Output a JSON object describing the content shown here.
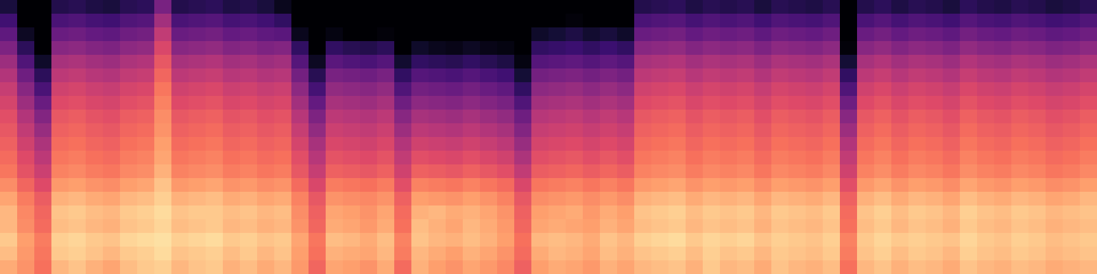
{
  "chart_data": {
    "type": "heatmap",
    "color": "magma",
    "zlim": [
      -80,
      0
    ],
    "tick_labels": false,
    "cells": [
      [
        -14,
        -18,
        -24,
        -12,
        -10,
        -13,
        -15,
        -11,
        -9,
        -8,
        -12,
        -10,
        -9,
        -13,
        -11,
        -14,
        -12,
        -17,
        -26,
        -15,
        -16,
        -18,
        -14,
        -25,
        -13,
        -16,
        -18,
        -15,
        -17,
        -20,
        -27,
        -16,
        -14,
        -15,
        -17,
        -13,
        -15,
        -12,
        -11,
        -10,
        -13,
        -9,
        -12,
        -11,
        -14,
        -10,
        -12,
        -13,
        -11,
        -24,
        -12,
        -10,
        -13,
        -11,
        -12,
        -14,
        -10,
        -12,
        -13,
        -11,
        -12,
        -14,
        -13,
        -12
      ],
      [
        -11,
        -17,
        -23,
        -9,
        -8,
        -10,
        -12,
        -9,
        -8,
        -6,
        -10,
        -9,
        -8,
        -11,
        -9,
        -12,
        -10,
        -16,
        -24,
        -13,
        -14,
        -15,
        -12,
        -22,
        -12,
        -14,
        -16,
        -13,
        -15,
        -18,
        -25,
        -14,
        -12,
        -13,
        -15,
        -11,
        -13,
        -10,
        -9,
        -8,
        -11,
        -8,
        -10,
        -9,
        -12,
        -9,
        -10,
        -11,
        -9,
        -22,
        -10,
        -8,
        -11,
        -9,
        -10,
        -12,
        -8,
        -10,
        -11,
        -9,
        -10,
        -12,
        -11,
        -10
      ],
      [
        -9,
        -16,
        -22,
        -8,
        -7,
        -9,
        -10,
        -7,
        -6,
        -5,
        -8,
        -7,
        -6,
        -9,
        -8,
        -10,
        -9,
        -15,
        -23,
        -11,
        -12,
        -14,
        -11,
        -21,
        -10,
        -12,
        -13,
        -11,
        -13,
        -16,
        -24,
        -12,
        -11,
        -12,
        -14,
        -10,
        -12,
        -8,
        -7,
        -6,
        -9,
        -7,
        -8,
        -7,
        -10,
        -8,
        -9,
        -10,
        -8,
        -21,
        -9,
        -7,
        -9,
        -8,
        -9,
        -10,
        -7,
        -9,
        -10,
        -8,
        -9,
        -11,
        -10,
        -9
      ],
      [
        -12,
        -19,
        -25,
        -11,
        -10,
        -12,
        -13,
        -10,
        -9,
        -7,
        -11,
        -10,
        -9,
        -12,
        -11,
        -13,
        -12,
        -18,
        -26,
        -14,
        -15,
        -17,
        -14,
        -24,
        -11,
        -13,
        -15,
        -12,
        -14,
        -17,
        -26,
        -15,
        -14,
        -15,
        -16,
        -13,
        -15,
        -11,
        -10,
        -9,
        -12,
        -10,
        -11,
        -10,
        -13,
        -10,
        -11,
        -12,
        -10,
        -24,
        -11,
        -9,
        -12,
        -10,
        -11,
        -13,
        -9,
        -11,
        -12,
        -10,
        -11,
        -13,
        -12,
        -11
      ],
      [
        -12,
        -20,
        -26,
        -10,
        -9,
        -11,
        -12,
        -9,
        -8,
        -6,
        -10,
        -9,
        -9,
        -11,
        -10,
        -12,
        -11,
        -19,
        -27,
        -15,
        -16,
        -18,
        -15,
        -25,
        -13,
        -12,
        -14,
        -13,
        -15,
        -18,
        -27,
        -16,
        -15,
        -14,
        -17,
        -14,
        -16,
        -10,
        -9,
        -8,
        -11,
        -9,
        -10,
        -9,
        -12,
        -9,
        -10,
        -11,
        -9,
        -25,
        -10,
        -8,
        -11,
        -9,
        -10,
        -12,
        -8,
        -10,
        -11,
        -9,
        -10,
        -12,
        -11,
        -10
      ],
      [
        -15,
        -22,
        -28,
        -13,
        -12,
        -14,
        -15,
        -12,
        -11,
        -8,
        -13,
        -12,
        -11,
        -14,
        -13,
        -15,
        -14,
        -21,
        -29,
        -18,
        -19,
        -20,
        -18,
        -27,
        -16,
        -17,
        -18,
        -16,
        -18,
        -21,
        -29,
        -19,
        -18,
        -17,
        -19,
        -17,
        -19,
        -13,
        -12,
        -11,
        -14,
        -12,
        -13,
        -12,
        -15,
        -12,
        -13,
        -14,
        -12,
        -27,
        -13,
        -11,
        -14,
        -12,
        -13,
        -15,
        -11,
        -13,
        -14,
        -12,
        -13,
        -15,
        -14,
        -12
      ],
      [
        -19,
        -26,
        -32,
        -17,
        -16,
        -18,
        -19,
        -16,
        -15,
        -10,
        -17,
        -16,
        -15,
        -18,
        -17,
        -19,
        -18,
        -25,
        -33,
        -22,
        -23,
        -24,
        -22,
        -31,
        -21,
        -22,
        -23,
        -21,
        -23,
        -25,
        -33,
        -23,
        -22,
        -21,
        -23,
        -21,
        -23,
        -17,
        -16,
        -15,
        -18,
        -16,
        -17,
        -16,
        -19,
        -16,
        -17,
        -18,
        -16,
        -31,
        -17,
        -15,
        -18,
        -16,
        -17,
        -19,
        -15,
        -17,
        -18,
        -16,
        -17,
        -19,
        -18,
        -16
      ],
      [
        -23,
        -30,
        -36,
        -21,
        -20,
        -22,
        -23,
        -20,
        -19,
        -13,
        -21,
        -20,
        -19,
        -22,
        -21,
        -23,
        -22,
        -29,
        -37,
        -27,
        -28,
        -29,
        -27,
        -35,
        -27,
        -28,
        -29,
        -27,
        -29,
        -31,
        -38,
        -28,
        -27,
        -26,
        -28,
        -26,
        -28,
        -21,
        -20,
        -19,
        -22,
        -20,
        -21,
        -20,
        -23,
        -20,
        -21,
        -22,
        -20,
        -35,
        -21,
        -19,
        -22,
        -20,
        -21,
        -23,
        -19,
        -21,
        -22,
        -20,
        -21,
        -23,
        -22,
        -20
      ],
      [
        -25,
        -32,
        -39,
        -23,
        -22,
        -24,
        -25,
        -22,
        -21,
        -15,
        -23,
        -22,
        -21,
        -24,
        -23,
        -25,
        -24,
        -31,
        -40,
        -30,
        -31,
        -32,
        -30,
        -38,
        -31,
        -32,
        -33,
        -31,
        -33,
        -35,
        -42,
        -31,
        -30,
        -29,
        -31,
        -29,
        -31,
        -23,
        -22,
        -21,
        -24,
        -22,
        -23,
        -22,
        -25,
        -22,
        -23,
        -24,
        -22,
        -38,
        -23,
        -21,
        -24,
        -22,
        -23,
        -25,
        -21,
        -23,
        -24,
        -22,
        -23,
        -25,
        -24,
        -22
      ],
      [
        -27,
        -35,
        -42,
        -25,
        -24,
        -26,
        -27,
        -24,
        -23,
        -16,
        -25,
        -24,
        -23,
        -26,
        -25,
        -27,
        -26,
        -34,
        -43,
        -33,
        -34,
        -35,
        -33,
        -41,
        -35,
        -36,
        -37,
        -35,
        -37,
        -39,
        -46,
        -34,
        -33,
        -32,
        -34,
        -32,
        -34,
        -25,
        -24,
        -23,
        -26,
        -24,
        -25,
        -24,
        -27,
        -24,
        -25,
        -26,
        -24,
        -41,
        -25,
        -23,
        -26,
        -24,
        -25,
        -27,
        -23,
        -25,
        -26,
        -24,
        -25,
        -27,
        -26,
        -24
      ],
      [
        -29,
        -38,
        -46,
        -27,
        -26,
        -28,
        -29,
        -26,
        -25,
        -18,
        -27,
        -26,
        -25,
        -28,
        -27,
        -29,
        -28,
        -37,
        -47,
        -36,
        -37,
        -38,
        -36,
        -45,
        -39,
        -40,
        -41,
        -39,
        -41,
        -43,
        -50,
        -37,
        -36,
        -35,
        -37,
        -35,
        -37,
        -27,
        -26,
        -25,
        -28,
        -26,
        -27,
        -26,
        -29,
        -26,
        -27,
        -28,
        -26,
        -45,
        -27,
        -25,
        -28,
        -26,
        -27,
        -29,
        -25,
        -27,
        -28,
        -26,
        -27,
        -29,
        -28,
        -26
      ],
      [
        -31,
        -41,
        -50,
        -29,
        -28,
        -30,
        -31,
        -28,
        -27,
        -19,
        -29,
        -28,
        -27,
        -30,
        -29,
        -31,
        -30,
        -40,
        -51,
        -39,
        -40,
        -41,
        -39,
        -49,
        -43,
        -44,
        -45,
        -43,
        -45,
        -47,
        -54,
        -40,
        -39,
        -38,
        -40,
        -38,
        -40,
        -29,
        -28,
        -27,
        -30,
        -28,
        -29,
        -28,
        -31,
        -28,
        -29,
        -30,
        -28,
        -49,
        -29,
        -27,
        -30,
        -28,
        -29,
        -31,
        -27,
        -29,
        -30,
        -28,
        -29,
        -31,
        -30,
        -28
      ],
      [
        -34,
        -45,
        -55,
        -32,
        -31,
        -33,
        -34,
        -31,
        -30,
        -21,
        -32,
        -31,
        -30,
        -33,
        -32,
        -34,
        -33,
        -44,
        -56,
        -43,
        -44,
        -45,
        -43,
        -54,
        -48,
        -49,
        -50,
        -48,
        -50,
        -52,
        -60,
        -44,
        -43,
        -42,
        -44,
        -42,
        -44,
        -32,
        -31,
        -30,
        -33,
        -31,
        -32,
        -31,
        -34,
        -31,
        -32,
        -33,
        -31,
        -54,
        -32,
        -30,
        -33,
        -31,
        -32,
        -34,
        -30,
        -32,
        -33,
        -31,
        -32,
        -34,
        -33,
        -31
      ],
      [
        -37,
        -49,
        -61,
        -35,
        -34,
        -36,
        -37,
        -34,
        -33,
        -23,
        -35,
        -34,
        -33,
        -36,
        -35,
        -37,
        -36,
        -48,
        -62,
        -47,
        -48,
        -49,
        -47,
        -60,
        -53,
        -54,
        -55,
        -53,
        -55,
        -57,
        -66,
        -48,
        -47,
        -46,
        -48,
        -46,
        -48,
        -35,
        -34,
        -33,
        -36,
        -34,
        -35,
        -34,
        -37,
        -34,
        -35,
        -36,
        -34,
        -60,
        -35,
        -33,
        -36,
        -34,
        -35,
        -37,
        -33,
        -35,
        -36,
        -34,
        -35,
        -37,
        -36,
        -34
      ],
      [
        -41,
        -54,
        -67,
        -39,
        -38,
        -40,
        -41,
        -38,
        -37,
        -26,
        -39,
        -38,
        -37,
        -40,
        -39,
        -41,
        -40,
        -53,
        -68,
        -52,
        -53,
        -54,
        -52,
        -66,
        -59,
        -60,
        -61,
        -59,
        -61,
        -63,
        -72,
        -53,
        -52,
        -51,
        -53,
        -51,
        -53,
        -39,
        -38,
        -37,
        -40,
        -38,
        -39,
        -38,
        -41,
        -38,
        -39,
        -40,
        -38,
        -66,
        -39,
        -37,
        -40,
        -38,
        -39,
        -41,
        -37,
        -39,
        -40,
        -38,
        -39,
        -41,
        -40,
        -38
      ],
      [
        -45,
        -60,
        -74,
        -43,
        -42,
        -44,
        -45,
        -42,
        -41,
        -29,
        -43,
        -42,
        -41,
        -44,
        -43,
        -45,
        -44,
        -59,
        -75,
        -58,
        -60,
        -61,
        -59,
        -73,
        -66,
        -67,
        -68,
        -66,
        -68,
        -70,
        -78,
        -59,
        -58,
        -57,
        -59,
        -57,
        -59,
        -43,
        -42,
        -41,
        -44,
        -42,
        -43,
        -42,
        -45,
        -42,
        -43,
        -44,
        -42,
        -72,
        -43,
        -41,
        -44,
        -42,
        -43,
        -45,
        -41,
        -43,
        -44,
        -42,
        -43,
        -45,
        -44,
        -42
      ],
      [
        -51,
        -67,
        -80,
        -49,
        -48,
        -50,
        -51,
        -48,
        -47,
        -33,
        -49,
        -48,
        -47,
        -50,
        -49,
        -51,
        -50,
        -66,
        -80,
        -66,
        -68,
        -69,
        -67,
        -80,
        -74,
        -76,
        -77,
        -75,
        -77,
        -78,
        -80,
        -66,
        -65,
        -64,
        -66,
        -64,
        -66,
        -49,
        -48,
        -47,
        -50,
        -48,
        -49,
        -48,
        -51,
        -48,
        -49,
        -50,
        -48,
        -79,
        -49,
        -47,
        -50,
        -48,
        -49,
        -51,
        -47,
        -49,
        -50,
        -48,
        -49,
        -51,
        -50,
        -48
      ],
      [
        -57,
        -75,
        -80,
        -55,
        -54,
        -56,
        -57,
        -54,
        -53,
        -38,
        -55,
        -54,
        -53,
        -56,
        -55,
        -57,
        -58,
        -76,
        -80,
        -78,
        -80,
        -80,
        -79,
        -80,
        -80,
        -80,
        -80,
        -80,
        -80,
        -80,
        -80,
        -74,
        -72,
        -70,
        -73,
        -71,
        -74,
        -55,
        -54,
        -53,
        -56,
        -54,
        -55,
        -54,
        -57,
        -54,
        -55,
        -56,
        -54,
        -80,
        -55,
        -53,
        -56,
        -54,
        -55,
        -57,
        -53,
        -55,
        -56,
        -54,
        -55,
        -57,
        -56,
        -54
      ],
      [
        -63,
        -80,
        -80,
        -61,
        -60,
        -62,
        -63,
        -60,
        -59,
        -44,
        -61,
        -60,
        -59,
        -62,
        -61,
        -63,
        -66,
        -80,
        -80,
        -80,
        -80,
        -80,
        -80,
        -80,
        -80,
        -80,
        -80,
        -80,
        -80,
        -80,
        -80,
        -80,
        -80,
        -79,
        -80,
        -80,
        -80,
        -61,
        -60,
        -59,
        -62,
        -60,
        -61,
        -60,
        -63,
        -60,
        -61,
        -62,
        -60,
        -80,
        -61,
        -59,
        -62,
        -60,
        -61,
        -63,
        -59,
        -61,
        -62,
        -60,
        -61,
        -63,
        -62,
        -60
      ],
      [
        -71,
        -80,
        -80,
        -69,
        -68,
        -70,
        -71,
        -68,
        -67,
        -52,
        -69,
        -68,
        -67,
        -70,
        -69,
        -71,
        -76,
        -80,
        -80,
        -80,
        -80,
        -80,
        -80,
        -80,
        -80,
        -80,
        -80,
        -80,
        -80,
        -80,
        -80,
        -80,
        -80,
        -80,
        -80,
        -80,
        -80,
        -69,
        -68,
        -67,
        -70,
        -68,
        -69,
        -68,
        -71,
        -68,
        -69,
        -70,
        -68,
        -80,
        -69,
        -67,
        -70,
        -68,
        -69,
        -71,
        -67,
        -69,
        -70,
        -68,
        -69,
        -71,
        -70,
        -68
      ]
    ]
  }
}
